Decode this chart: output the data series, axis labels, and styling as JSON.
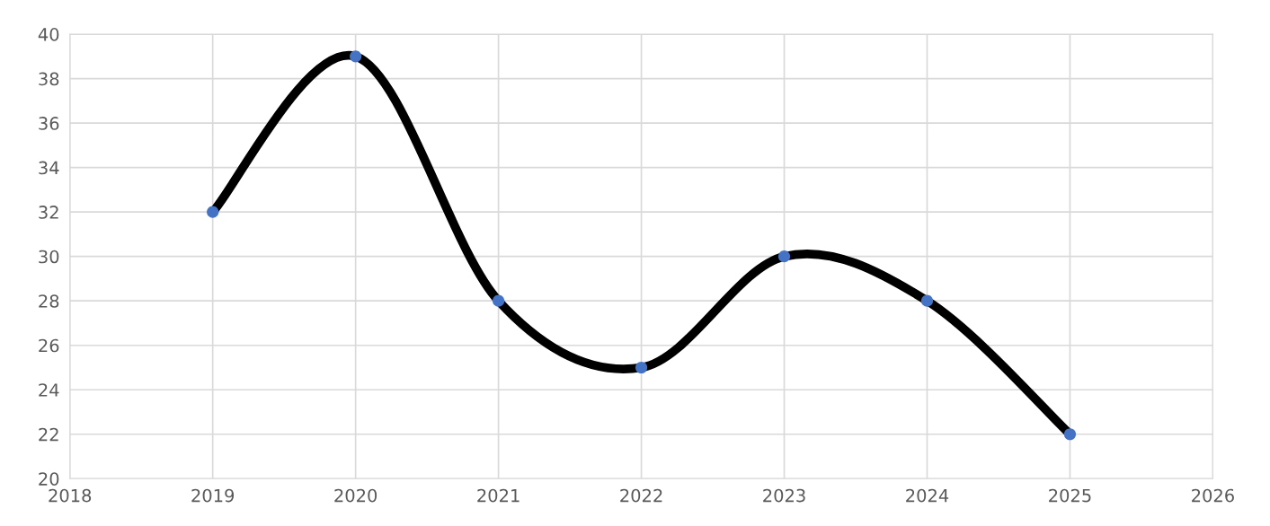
{
  "chart_data": {
    "type": "line",
    "x": [
      2019,
      2020,
      2021,
      2022,
      2023,
      2024,
      2025
    ],
    "series": [
      {
        "color": "#000000",
        "colors": [
          "#4472c4",
          "#4472c4",
          "#4472c4",
          "#4472c4",
          "#4472c4",
          "#4472c4",
          "#4472c4"
        ],
        "values": [
          32,
          39,
          28,
          25,
          30,
          28,
          22
        ]
      }
    ],
    "xlim": [
      2018,
      2026
    ],
    "xticks": [
      2018,
      2019,
      2020,
      2021,
      2022,
      2023,
      2024,
      2025,
      2026
    ],
    "ylim": [
      20,
      40
    ],
    "yticks": [
      20,
      22,
      24,
      26,
      28,
      30,
      32,
      34,
      36,
      38,
      40
    ],
    "grid": true,
    "marker": "circle",
    "line_style": "solid",
    "legend": false
  }
}
